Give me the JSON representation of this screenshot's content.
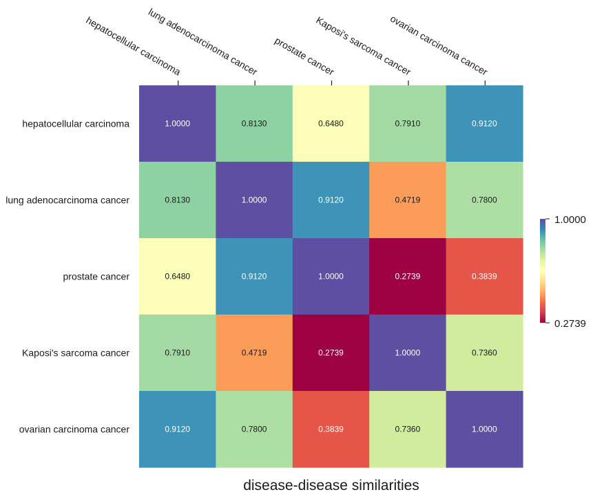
{
  "chart_data": {
    "type": "heatmap",
    "title": "",
    "xlabel": "disease-disease similarities",
    "ylabel": "",
    "rows": [
      "hepatocellular carcinoma",
      "lung adenocarcinoma cancer",
      "prostate cancer",
      "Kaposi's sarcoma cancer",
      "ovarian carcinoma cancer"
    ],
    "columns": [
      "hepatocellular carcinoma",
      "lung adenocarcinoma cancer",
      "prostate cancer",
      "Kaposi's sarcoma cancer",
      "ovarian carcinoma cancer"
    ],
    "values": [
      [
        1.0,
        0.813,
        0.648,
        0.791,
        0.912
      ],
      [
        0.813,
        1.0,
        0.912,
        0.4719,
        0.78
      ],
      [
        0.648,
        0.912,
        1.0,
        0.2739,
        0.3839
      ],
      [
        0.791,
        0.4719,
        0.2739,
        1.0,
        0.736
      ],
      [
        0.912,
        0.78,
        0.3839,
        0.736,
        1.0
      ]
    ],
    "value_format": "0.0000",
    "colormap": "Spectral",
    "vmin": 0.2739,
    "vmax": 1.0,
    "colorbar": {
      "ticks": [
        1.0,
        0.2739
      ],
      "tick_labels": [
        "1.0000",
        "0.2739"
      ],
      "position": "right"
    },
    "x_tick_position": "top",
    "grid": false
  },
  "colors": {
    "spectral_stops": [
      "#9e0142",
      "#d53e4f",
      "#f46d43",
      "#fdae61",
      "#fee08b",
      "#ffffbf",
      "#e6f598",
      "#abdda4",
      "#66c2a5",
      "#3288bd",
      "#5e4fa2"
    ],
    "text_dark": "#1a1a1a",
    "text_light": "#ffffff"
  }
}
